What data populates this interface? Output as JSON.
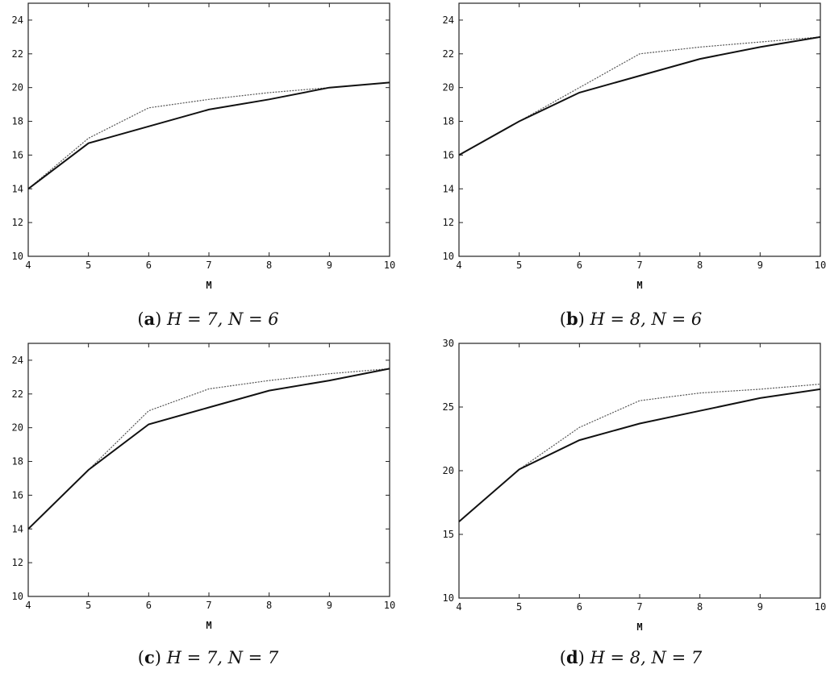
{
  "chart_data": [
    {
      "type": "line",
      "caption": {
        "tag": "a",
        "text": "H = 7, N = 6"
      },
      "xlabel": "M",
      "ylabel": "",
      "xlim": [
        4,
        10
      ],
      "ylim": [
        10,
        25
      ],
      "xticks": [
        4,
        5,
        6,
        7,
        8,
        9,
        10
      ],
      "yticks": [
        10,
        12,
        14,
        16,
        18,
        20,
        22,
        24
      ],
      "grid": false,
      "series": [
        {
          "style": "dotted",
          "x": [
            4,
            5,
            6,
            7,
            8,
            9,
            10
          ],
          "values": [
            14.0,
            17.0,
            18.8,
            19.3,
            19.7,
            20.0,
            20.3
          ]
        },
        {
          "style": "solid",
          "x": [
            4,
            5,
            6,
            7,
            8,
            9,
            10
          ],
          "values": [
            14.0,
            16.7,
            17.7,
            18.7,
            19.3,
            20.0,
            20.3
          ]
        }
      ]
    },
    {
      "type": "line",
      "caption": {
        "tag": "b",
        "text": "H = 8, N = 6"
      },
      "xlabel": "M",
      "ylabel": "",
      "xlim": [
        4,
        10
      ],
      "ylim": [
        10,
        25
      ],
      "xticks": [
        4,
        5,
        6,
        7,
        8,
        9,
        10
      ],
      "yticks": [
        10,
        12,
        14,
        16,
        18,
        20,
        22,
        24
      ],
      "grid": false,
      "series": [
        {
          "style": "dotted",
          "x": [
            4,
            5,
            6,
            7,
            8,
            9,
            10
          ],
          "values": [
            16.0,
            18.0,
            20.0,
            22.0,
            22.4,
            22.7,
            23.0
          ]
        },
        {
          "style": "solid",
          "x": [
            4,
            5,
            6,
            7,
            8,
            9,
            10
          ],
          "values": [
            16.0,
            18.0,
            19.7,
            20.7,
            21.7,
            22.4,
            23.0
          ]
        }
      ]
    },
    {
      "type": "line",
      "caption": {
        "tag": "c",
        "text": "H = 7, N = 7"
      },
      "xlabel": "M",
      "ylabel": "",
      "xlim": [
        4,
        10
      ],
      "ylim": [
        10,
        25
      ],
      "xticks": [
        4,
        5,
        6,
        7,
        8,
        9,
        10
      ],
      "yticks": [
        10,
        12,
        14,
        16,
        18,
        20,
        22,
        24
      ],
      "grid": false,
      "series": [
        {
          "style": "dotted",
          "x": [
            4,
            5,
            6,
            7,
            8,
            9,
            10
          ],
          "values": [
            14.0,
            17.5,
            21.0,
            22.3,
            22.8,
            23.2,
            23.5
          ]
        },
        {
          "style": "solid",
          "x": [
            4,
            5,
            6,
            7,
            8,
            9,
            10
          ],
          "values": [
            14.0,
            17.5,
            20.2,
            21.2,
            22.2,
            22.8,
            23.5
          ]
        }
      ]
    },
    {
      "type": "line",
      "caption": {
        "tag": "d",
        "text": "H = 8, N = 7"
      },
      "xlabel": "M",
      "ylabel": "",
      "xlim": [
        4,
        10
      ],
      "ylim": [
        10,
        30
      ],
      "xticks": [
        4,
        5,
        6,
        7,
        8,
        9,
        10
      ],
      "yticks": [
        10,
        15,
        20,
        25,
        30
      ],
      "grid": false,
      "series": [
        {
          "style": "dotted",
          "x": [
            4,
            5,
            6,
            7,
            8,
            9,
            10
          ],
          "values": [
            16.0,
            20.1,
            23.4,
            25.5,
            26.1,
            26.4,
            26.8
          ]
        },
        {
          "style": "solid",
          "x": [
            4,
            5,
            6,
            7,
            8,
            9,
            10
          ],
          "values": [
            16.0,
            20.1,
            22.4,
            23.7,
            24.7,
            25.7,
            26.4
          ]
        }
      ]
    }
  ]
}
